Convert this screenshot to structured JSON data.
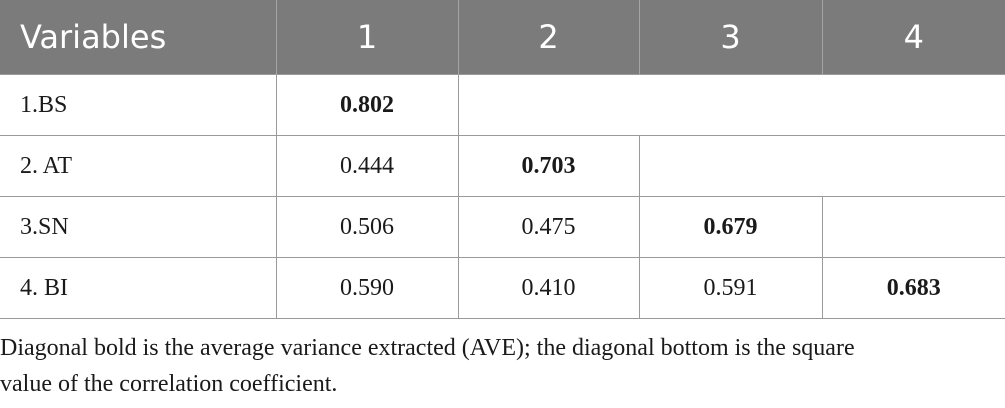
{
  "table": {
    "headers": [
      "Variables",
      "1",
      "2",
      "3",
      "4"
    ],
    "rows": [
      {
        "label": "1.BS",
        "cells": [
          "0.802",
          "",
          "",
          ""
        ]
      },
      {
        "label": "2. AT",
        "cells": [
          "0.444",
          "0.703",
          "",
          ""
        ]
      },
      {
        "label": "3.SN",
        "cells": [
          "0.506",
          "0.475",
          "0.679",
          ""
        ]
      },
      {
        "label": "4. BI",
        "cells": [
          "0.590",
          "0.410",
          "0.591",
          "0.683"
        ]
      }
    ]
  },
  "footnote": {
    "line1": "Diagonal bold is the average variance extracted (AVE); the diagonal bottom is the square",
    "line2": "value of the correlation coefficient."
  }
}
